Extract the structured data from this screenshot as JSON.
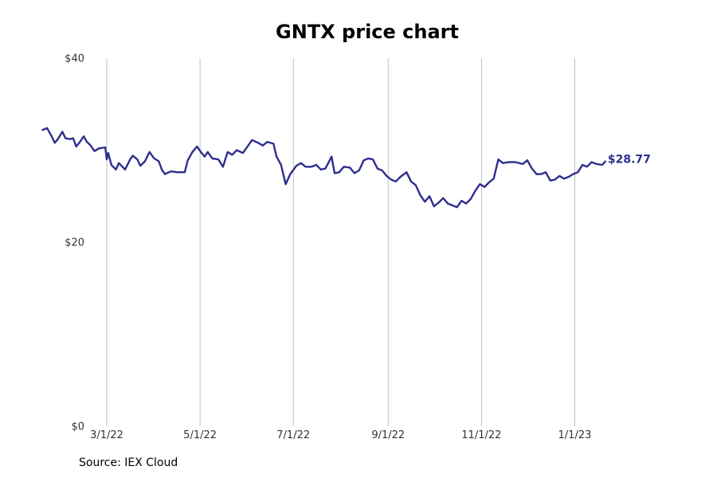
{
  "chart_data": {
    "type": "line",
    "title": "GNTX price chart",
    "source": "Source: IEX Cloud",
    "xlabel": "",
    "ylabel": "",
    "ylim": [
      0,
      40
    ],
    "xlim": [
      "2022-01-10",
      "2023-03-10"
    ],
    "y_ticks": [
      0,
      20,
      40
    ],
    "y_tick_labels": [
      "$0",
      "$20",
      "$40"
    ],
    "x_ticks": [
      "2022-03-01",
      "2022-05-01",
      "2022-07-01",
      "2022-09-01",
      "2022-11-01",
      "2023-01-01"
    ],
    "x_tick_labels": [
      "3/1/22",
      "5/1/22",
      "7/1/22",
      "9/1/22",
      "11/1/22",
      "1/1/23"
    ],
    "grid": "vertical",
    "color": "#2e2e8f",
    "end_label": "$28.77",
    "series": [
      {
        "values": [
          [
            "2022-01-18",
            32.2
          ],
          [
            "2022-01-21",
            32.4
          ],
          [
            "2022-01-24",
            31.5
          ],
          [
            "2022-01-26",
            30.8
          ],
          [
            "2022-01-28",
            31.2
          ],
          [
            "2022-01-31",
            32.0
          ],
          [
            "2022-02-02",
            31.3
          ],
          [
            "2022-02-05",
            31.2
          ],
          [
            "2022-02-07",
            31.3
          ],
          [
            "2022-02-09",
            30.4
          ],
          [
            "2022-02-11",
            30.8
          ],
          [
            "2022-02-14",
            31.5
          ],
          [
            "2022-02-16",
            30.9
          ],
          [
            "2022-02-18",
            30.6
          ],
          [
            "2022-02-21",
            29.9
          ],
          [
            "2022-02-24",
            30.2
          ],
          [
            "2022-02-28",
            30.3
          ],
          [
            "2022-03-01",
            29.0
          ],
          [
            "2022-03-02",
            29.7
          ],
          [
            "2022-03-04",
            28.4
          ],
          [
            "2022-03-07",
            27.9
          ],
          [
            "2022-03-09",
            28.6
          ],
          [
            "2022-03-13",
            27.9
          ],
          [
            "2022-03-16",
            28.9
          ],
          [
            "2022-03-18",
            29.4
          ],
          [
            "2022-03-21",
            29.0
          ],
          [
            "2022-03-23",
            28.3
          ],
          [
            "2022-03-26",
            28.8
          ],
          [
            "2022-03-29",
            29.8
          ],
          [
            "2022-04-01",
            29.1
          ],
          [
            "2022-04-04",
            28.8
          ],
          [
            "2022-04-06",
            27.9
          ],
          [
            "2022-04-08",
            27.4
          ],
          [
            "2022-04-12",
            27.7
          ],
          [
            "2022-04-16",
            27.6
          ],
          [
            "2022-04-21",
            27.6
          ],
          [
            "2022-04-23",
            28.9
          ],
          [
            "2022-04-26",
            29.8
          ],
          [
            "2022-04-29",
            30.4
          ],
          [
            "2022-05-02",
            29.7
          ],
          [
            "2022-05-04",
            29.3
          ],
          [
            "2022-05-06",
            29.8
          ],
          [
            "2022-05-09",
            29.1
          ],
          [
            "2022-05-13",
            29.0
          ],
          [
            "2022-05-16",
            28.2
          ],
          [
            "2022-05-19",
            29.8
          ],
          [
            "2022-05-22",
            29.5
          ],
          [
            "2022-05-25",
            30.0
          ],
          [
            "2022-05-29",
            29.7
          ],
          [
            "2022-06-01",
            30.4
          ],
          [
            "2022-06-04",
            31.1
          ],
          [
            "2022-06-08",
            30.8
          ],
          [
            "2022-06-11",
            30.5
          ],
          [
            "2022-06-14",
            30.9
          ],
          [
            "2022-06-18",
            30.7
          ],
          [
            "2022-06-20",
            29.3
          ],
          [
            "2022-06-23",
            28.4
          ],
          [
            "2022-06-26",
            26.3
          ],
          [
            "2022-06-29",
            27.4
          ],
          [
            "2022-07-03",
            28.3
          ],
          [
            "2022-07-06",
            28.6
          ],
          [
            "2022-07-09",
            28.2
          ],
          [
            "2022-07-13",
            28.2
          ],
          [
            "2022-07-16",
            28.4
          ],
          [
            "2022-07-19",
            27.9
          ],
          [
            "2022-07-22",
            28.0
          ],
          [
            "2022-07-26",
            29.3
          ],
          [
            "2022-07-28",
            27.5
          ],
          [
            "2022-07-31",
            27.6
          ],
          [
            "2022-08-03",
            28.2
          ],
          [
            "2022-08-07",
            28.1
          ],
          [
            "2022-08-10",
            27.5
          ],
          [
            "2022-08-13",
            27.8
          ],
          [
            "2022-08-16",
            28.9
          ],
          [
            "2022-08-19",
            29.1
          ],
          [
            "2022-08-22",
            29.0
          ],
          [
            "2022-08-25",
            28.0
          ],
          [
            "2022-08-28",
            27.8
          ],
          [
            "2022-08-31",
            27.2
          ],
          [
            "2022-09-03",
            26.8
          ],
          [
            "2022-09-06",
            26.6
          ],
          [
            "2022-09-09",
            27.1
          ],
          [
            "2022-09-13",
            27.6
          ],
          [
            "2022-09-16",
            26.6
          ],
          [
            "2022-09-19",
            26.2
          ],
          [
            "2022-09-22",
            25.1
          ],
          [
            "2022-09-25",
            24.4
          ],
          [
            "2022-09-28",
            25.0
          ],
          [
            "2022-10-01",
            23.9
          ],
          [
            "2022-10-04",
            24.3
          ],
          [
            "2022-10-07",
            24.8
          ],
          [
            "2022-10-10",
            24.2
          ],
          [
            "2022-10-13",
            24.0
          ],
          [
            "2022-10-16",
            23.8
          ],
          [
            "2022-10-19",
            24.5
          ],
          [
            "2022-10-22",
            24.2
          ],
          [
            "2022-10-25",
            24.7
          ],
          [
            "2022-10-28",
            25.6
          ],
          [
            "2022-10-31",
            26.3
          ],
          [
            "2022-11-03",
            26.0
          ],
          [
            "2022-11-06",
            26.5
          ],
          [
            "2022-11-09",
            26.9
          ],
          [
            "2022-11-12",
            29.0
          ],
          [
            "2022-11-15",
            28.6
          ],
          [
            "2022-11-19",
            28.7
          ],
          [
            "2022-11-23",
            28.7
          ],
          [
            "2022-11-28",
            28.5
          ],
          [
            "2022-12-01",
            28.9
          ],
          [
            "2022-12-04",
            28.0
          ],
          [
            "2022-12-07",
            27.4
          ],
          [
            "2022-12-10",
            27.4
          ],
          [
            "2022-12-13",
            27.6
          ],
          [
            "2022-12-16",
            26.7
          ],
          [
            "2022-12-19",
            26.8
          ],
          [
            "2022-12-22",
            27.2
          ],
          [
            "2022-12-25",
            26.9
          ],
          [
            "2022-12-28",
            27.1
          ],
          [
            "2022-12-31",
            27.4
          ],
          [
            "2023-01-03",
            27.6
          ],
          [
            "2023-01-06",
            28.4
          ],
          [
            "2023-01-09",
            28.2
          ],
          [
            "2023-01-12",
            28.7
          ],
          [
            "2023-01-15",
            28.5
          ],
          [
            "2023-01-19",
            28.4
          ],
          [
            "2023-01-21",
            28.77
          ]
        ]
      }
    ]
  }
}
